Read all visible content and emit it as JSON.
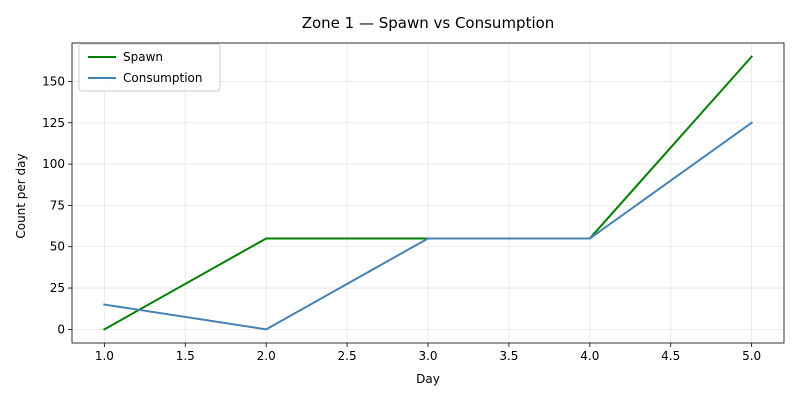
{
  "chart_data": {
    "type": "line",
    "title": "Zone 1 — Spawn vs Consumption",
    "xlabel": "Day",
    "ylabel": "Count per day",
    "x": [
      1,
      2,
      3,
      4,
      5
    ],
    "series": [
      {
        "name": "Spawn",
        "values": [
          0,
          55,
          55,
          55,
          165
        ],
        "color": "#008000"
      },
      {
        "name": "Consumption",
        "values": [
          15,
          0,
          55,
          55,
          125
        ],
        "color": "#4682b4"
      }
    ],
    "xlim": [
      0.8,
      5.2
    ],
    "ylim": [
      -8.25,
      173.25
    ],
    "x_ticks": [
      1.0,
      1.5,
      2.0,
      2.5,
      3.0,
      3.5,
      4.0,
      4.5,
      5.0
    ],
    "x_tick_labels": [
      "1.0",
      "1.5",
      "2.0",
      "2.5",
      "3.0",
      "3.5",
      "4.0",
      "4.5",
      "5.0"
    ],
    "y_ticks": [
      0,
      25,
      50,
      75,
      100,
      125,
      150
    ],
    "y_tick_labels": [
      "0",
      "25",
      "50",
      "75",
      "100",
      "125",
      "150"
    ],
    "grid": true,
    "legend_position": "top-left"
  }
}
